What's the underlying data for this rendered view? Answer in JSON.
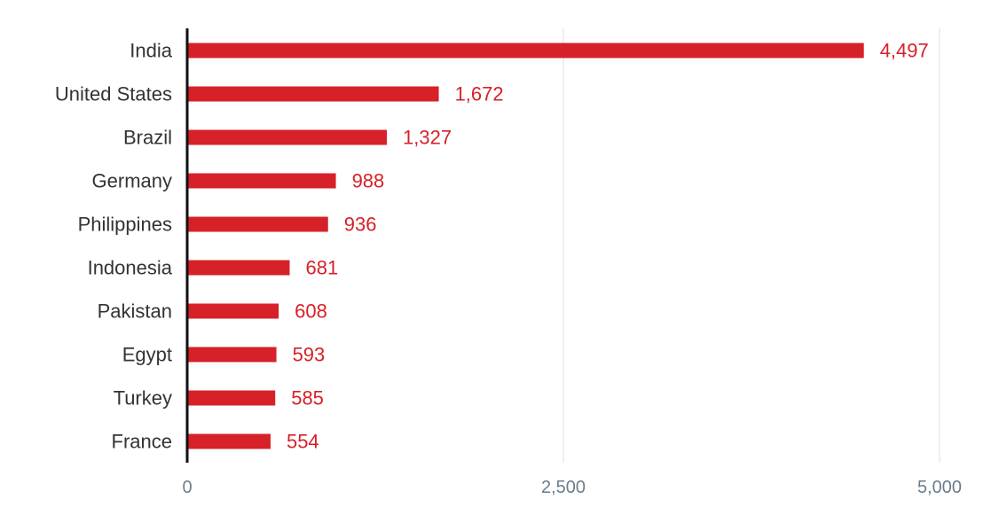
{
  "colors": {
    "bar": "#d62128",
    "value_label": "#d62128",
    "category_label": "#333333",
    "tick_label": "#6b7c8c",
    "gridline": "#e2e2e2",
    "axis_line": "#111111",
    "background": "#ffffff"
  },
  "chart_data": {
    "type": "bar",
    "orientation": "horizontal",
    "categories": [
      "India",
      "United States",
      "Brazil",
      "Germany",
      "Philippines",
      "Indonesia",
      "Pakistan",
      "Egypt",
      "Turkey",
      "France"
    ],
    "values": [
      4497,
      1672,
      1327,
      988,
      936,
      681,
      608,
      593,
      585,
      554
    ],
    "value_labels": [
      "4,497",
      "1,672",
      "1,327",
      "988",
      "936",
      "681",
      "608",
      "593",
      "585",
      "554"
    ],
    "title": "",
    "xlabel": "",
    "ylabel": "",
    "xlim": [
      0,
      5000
    ],
    "x_ticks": [
      0,
      2500,
      5000
    ],
    "x_tick_labels": [
      "0",
      "2,500",
      "5,000"
    ],
    "grid": "vertical",
    "legend": "none"
  }
}
